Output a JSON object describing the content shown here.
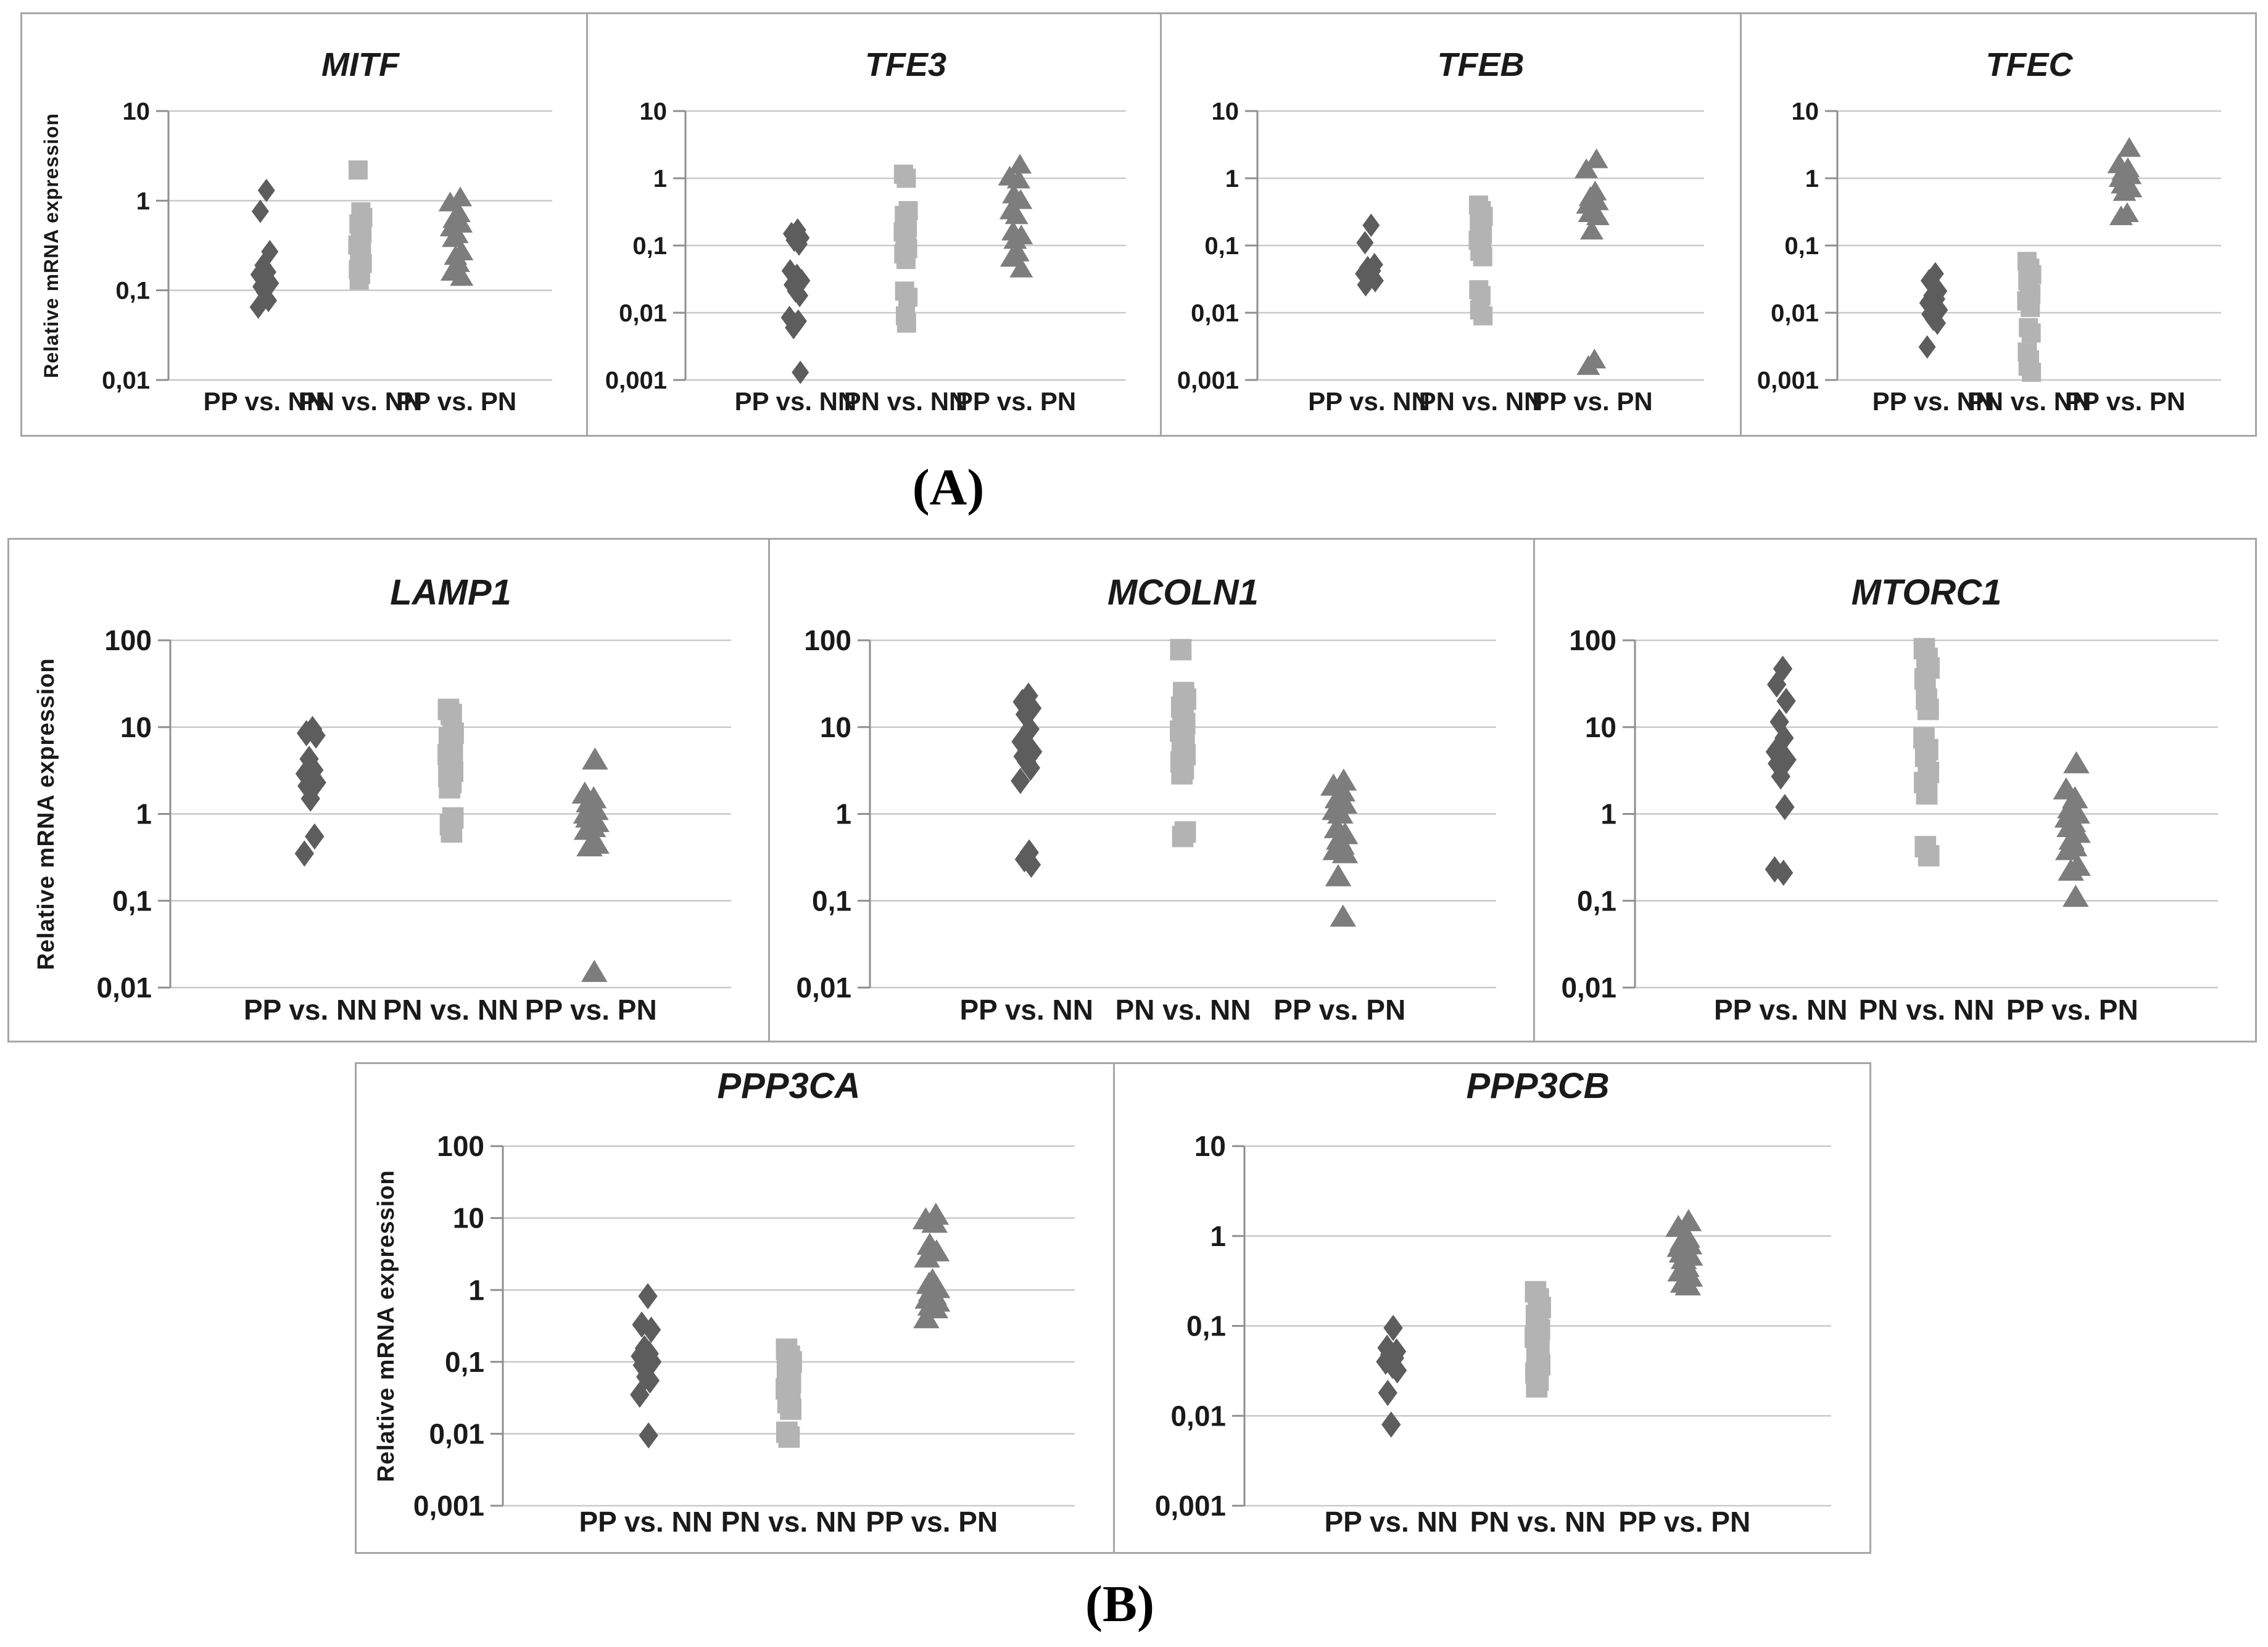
{
  "figure": {
    "panel_a_label": "(A)",
    "panel_b_label": "(B)",
    "y_axis_title": "Relative mRNA expression",
    "categories": [
      "PP vs. NN",
      "PN vs. NN",
      "PP vs. PN"
    ]
  },
  "colors": {
    "diamond": "#5d5d5d",
    "square": "#b3b3b3",
    "triangle": "#7d7d7d",
    "gridline": "#c9c9c9",
    "axis": "#8f8f8f",
    "border": "#a6a6a6",
    "text": "#1a1a1a",
    "background": "#ffffff"
  },
  "chart_data": [
    {
      "id": "MITF",
      "type": "scatter",
      "panel": "A",
      "title": "MITF",
      "yscale": "log",
      "ylim": [
        0.01,
        10
      ],
      "yticks": [
        "10",
        "1",
        "0,1",
        "0,01"
      ],
      "ytick_values": [
        10,
        1,
        0.1,
        0.01
      ],
      "grid": true,
      "has_y_axis_title": true,
      "series": [
        {
          "name": "PP vs. NN",
          "marker": "diamond",
          "values": [
            1.3,
            0.76,
            0.27,
            0.19,
            0.16,
            0.15,
            0.14,
            0.12,
            0.11,
            0.096,
            0.077,
            0.065
          ]
        },
        {
          "name": "PN vs. NN",
          "marker": "square",
          "values": [
            2.2,
            0.75,
            0.65,
            0.55,
            0.48,
            0.43,
            0.32,
            0.27,
            0.23,
            0.2,
            0.17,
            0.15,
            0.13
          ]
        },
        {
          "name": "PP vs. PN",
          "marker": "triangle",
          "values": [
            1.08,
            0.95,
            0.72,
            0.62,
            0.55,
            0.5,
            0.42,
            0.38,
            0.27,
            0.24,
            0.2,
            0.16,
            0.14
          ]
        }
      ]
    },
    {
      "id": "TFE3",
      "type": "scatter",
      "panel": "A",
      "title": "TFE3",
      "yscale": "log",
      "ylim": [
        0.001,
        10
      ],
      "yticks": [
        "10",
        "1",
        "0,1",
        "0,01",
        "0,001"
      ],
      "ytick_values": [
        10,
        1,
        0.1,
        0.01,
        0.001
      ],
      "grid": true,
      "has_y_axis_title": false,
      "series": [
        {
          "name": "PP vs. NN",
          "marker": "diamond",
          "values": [
            0.17,
            0.15,
            0.13,
            0.12,
            0.105,
            0.042,
            0.036,
            0.03,
            0.026,
            0.021,
            0.018,
            0.0085,
            0.0075,
            0.006,
            0.0013
          ]
        },
        {
          "name": "PN vs. NN",
          "marker": "square",
          "values": [
            1.15,
            1.0,
            0.33,
            0.28,
            0.23,
            0.19,
            0.16,
            0.13,
            0.11,
            0.09,
            0.075,
            0.062,
            0.021,
            0.017,
            0.009,
            0.007
          ]
        },
        {
          "name": "PP vs. PN",
          "marker": "triangle",
          "values": [
            1.58,
            1.05,
            0.95,
            0.57,
            0.47,
            0.33,
            0.28,
            0.16,
            0.14,
            0.12,
            0.078,
            0.065,
            0.045
          ]
        }
      ]
    },
    {
      "id": "TFEB",
      "type": "scatter",
      "panel": "A",
      "title": "TFEB",
      "yscale": "log",
      "ylim": [
        0.001,
        10
      ],
      "yticks": [
        "10",
        "1",
        "0,1",
        "0,01",
        "0,001"
      ],
      "ytick_values": [
        10,
        1,
        0.1,
        0.01,
        0.001
      ],
      "grid": true,
      "has_y_axis_title": false,
      "series": [
        {
          "name": "PP vs. NN",
          "marker": "diamond",
          "values": [
            0.2,
            0.11,
            0.052,
            0.047,
            0.042,
            0.038,
            0.034,
            0.03,
            0.026
          ]
        },
        {
          "name": "PN vs. NN",
          "marker": "square",
          "values": [
            0.4,
            0.33,
            0.27,
            0.22,
            0.18,
            0.15,
            0.12,
            0.1,
            0.082,
            0.068,
            0.022,
            0.018,
            0.011,
            0.009
          ]
        },
        {
          "name": "PP vs. PN",
          "marker": "triangle",
          "values": [
            1.9,
            1.35,
            0.63,
            0.52,
            0.45,
            0.4,
            0.35,
            0.3,
            0.27,
            0.165,
            0.002,
            0.0016
          ]
        }
      ]
    },
    {
      "id": "TFEC",
      "type": "scatter",
      "panel": "A",
      "title": "TFEC",
      "yscale": "log",
      "ylim": [
        0.001,
        10
      ],
      "yticks": [
        "10",
        "1",
        "0,1",
        "0,01",
        "0,001"
      ],
      "ytick_values": [
        10,
        1,
        0.1,
        0.01,
        0.001
      ],
      "grid": true,
      "has_y_axis_title": false,
      "series": [
        {
          "name": "PP vs. NN",
          "marker": "diamond",
          "values": [
            0.038,
            0.03,
            0.021,
            0.018,
            0.016,
            0.014,
            0.012,
            0.011,
            0.0095,
            0.008,
            0.007,
            0.0031
          ]
        },
        {
          "name": "PN vs. NN",
          "marker": "square",
          "values": [
            0.058,
            0.046,
            0.037,
            0.03,
            0.024,
            0.019,
            0.015,
            0.012,
            0.006,
            0.005,
            0.0026,
            0.002,
            0.0016,
            0.0013
          ]
        },
        {
          "name": "PP vs. PN",
          "marker": "triangle",
          "values": [
            2.8,
            1.6,
            1.4,
            1.25,
            1.1,
            1.0,
            0.9,
            0.8,
            0.7,
            0.62,
            0.3,
            0.27
          ]
        }
      ]
    },
    {
      "id": "LAMP1",
      "type": "scatter",
      "panel": "B1",
      "title": "LAMP1",
      "yscale": "log",
      "ylim": [
        0.01,
        100
      ],
      "yticks": [
        "100",
        "10",
        "1",
        "0,1",
        "0,01"
      ],
      "ytick_values": [
        100,
        10,
        1,
        0.1,
        0.01
      ],
      "grid": true,
      "has_y_axis_title": true,
      "series": [
        {
          "name": "PP vs. NN",
          "marker": "diamond",
          "values": [
            9.5,
            8.5,
            8.0,
            4.3,
            3.2,
            2.9,
            2.6,
            2.3,
            2.1,
            1.5,
            0.55,
            0.35
          ]
        },
        {
          "name": "PN vs. NN",
          "marker": "square",
          "values": [
            16,
            14,
            8.5,
            7.5,
            6.5,
            5.5,
            4.8,
            4.2,
            3.6,
            3.1,
            2.7,
            2.3,
            2.0,
            0.9,
            0.75,
            0.62
          ]
        },
        {
          "name": "PP vs. PN",
          "marker": "triangle",
          "values": [
            4.2,
            1.7,
            1.5,
            1.35,
            1.1,
            1.0,
            0.95,
            0.9,
            0.8,
            0.75,
            0.7,
            0.65,
            0.45,
            0.42,
            0.015
          ]
        }
      ]
    },
    {
      "id": "MCOLN1",
      "type": "scatter",
      "panel": "B1",
      "title": "MCOLN1",
      "yscale": "log",
      "ylim": [
        0.01,
        100
      ],
      "yticks": [
        "100",
        "10",
        "1",
        "0,1",
        "0,01"
      ],
      "ytick_values": [
        100,
        10,
        1,
        0.1,
        0.01
      ],
      "grid": true,
      "has_y_axis_title": false,
      "series": [
        {
          "name": "PP vs. NN",
          "marker": "diamond",
          "values": [
            23,
            19.5,
            16.5,
            14,
            9.5,
            6.8,
            6.0,
            5.2,
            4.6,
            4.0,
            3.4,
            2.4,
            0.36,
            0.3,
            0.26
          ]
        },
        {
          "name": "PN vs. NN",
          "marker": "square",
          "values": [
            78,
            25,
            21,
            17,
            14,
            11,
            9,
            7.5,
            5.8,
            4.8,
            4.0,
            3.3,
            2.9,
            0.62,
            0.55
          ]
        },
        {
          "name": "PP vs. PN",
          "marker": "triangle",
          "values": [
            2.4,
            2.1,
            1.8,
            1.5,
            1.3,
            1.1,
            1.0,
            0.68,
            0.58,
            0.5,
            0.44,
            0.38,
            0.35,
            0.19,
            0.065
          ]
        }
      ]
    },
    {
      "id": "MTORC1",
      "type": "scatter",
      "panel": "B1",
      "title": "MTORC1",
      "yscale": "log",
      "ylim": [
        0.01,
        100
      ],
      "yticks": [
        "100",
        "10",
        "1",
        "0,1",
        "0,01"
      ],
      "ytick_values": [
        100,
        10,
        1,
        0.1,
        0.01
      ],
      "grid": true,
      "has_y_axis_title": false,
      "series": [
        {
          "name": "PP vs. NN",
          "marker": "diamond",
          "values": [
            47,
            31,
            20,
            11.5,
            7.5,
            5.2,
            4.6,
            4.2,
            3.8,
            2.7,
            1.2,
            0.23,
            0.21
          ]
        },
        {
          "name": "PN vs. NN",
          "marker": "square",
          "values": [
            80,
            62,
            48,
            36,
            21,
            16,
            7.5,
            5.5,
            4.6,
            3.0,
            2.3,
            1.7,
            0.42,
            0.33
          ]
        },
        {
          "name": "PP vs. PN",
          "marker": "triangle",
          "values": [
            3.8,
            1.9,
            1.5,
            1.15,
            1.0,
            0.9,
            0.8,
            0.7,
            0.6,
            0.5,
            0.42,
            0.38,
            0.25,
            0.22,
            0.11
          ]
        }
      ]
    },
    {
      "id": "PPP3CA",
      "type": "scatter",
      "panel": "B2",
      "title": "PPP3CA",
      "yscale": "log",
      "ylim": [
        0.001,
        100
      ],
      "yticks": [
        "100",
        "10",
        "1",
        "0,1",
        "0,01",
        "0,001"
      ],
      "ytick_values": [
        100,
        10,
        1,
        0.1,
        0.01,
        0.001
      ],
      "grid": true,
      "has_y_axis_title": true,
      "series": [
        {
          "name": "PP vs. NN",
          "marker": "diamond",
          "values": [
            0.82,
            0.33,
            0.28,
            0.155,
            0.13,
            0.12,
            0.11,
            0.1,
            0.09,
            0.062,
            0.055,
            0.035,
            0.0095
          ]
        },
        {
          "name": "PN vs. NN",
          "marker": "square",
          "values": [
            0.15,
            0.12,
            0.1,
            0.08,
            0.065,
            0.052,
            0.042,
            0.034,
            0.027,
            0.022,
            0.0105,
            0.009
          ]
        },
        {
          "name": "PP vs. PN",
          "marker": "triangle",
          "values": [
            11,
            9.5,
            8.5,
            4.2,
            3.4,
            2.8,
            1.35,
            1.2,
            1.05,
            0.95,
            0.85,
            0.75,
            0.68,
            0.6,
            0.55,
            0.4
          ]
        }
      ]
    },
    {
      "id": "PPP3CB",
      "type": "scatter",
      "panel": "B2",
      "title": "PPP3CB",
      "yscale": "log",
      "ylim": [
        0.001,
        10
      ],
      "yticks": [
        "10",
        "1",
        "0,1",
        "0,01",
        "0,001"
      ],
      "ytick_values": [
        10,
        1,
        0.1,
        0.01,
        0.001
      ],
      "grid": true,
      "has_y_axis_title": false,
      "series": [
        {
          "name": "PP vs. NN",
          "marker": "diamond",
          "values": [
            0.095,
            0.057,
            0.052,
            0.048,
            0.044,
            0.04,
            0.036,
            0.032,
            0.018,
            0.008
          ]
        },
        {
          "name": "PN vs. NN",
          "marker": "square",
          "values": [
            0.24,
            0.2,
            0.16,
            0.13,
            0.11,
            0.09,
            0.075,
            0.055,
            0.045,
            0.037,
            0.03,
            0.025,
            0.021
          ]
        },
        {
          "name": "PP vs. PN",
          "marker": "triangle",
          "values": [
            1.45,
            1.25,
            0.95,
            0.88,
            0.8,
            0.75,
            0.7,
            0.65,
            0.6,
            0.55,
            0.45,
            0.4,
            0.35,
            0.3,
            0.28
          ]
        }
      ]
    }
  ]
}
